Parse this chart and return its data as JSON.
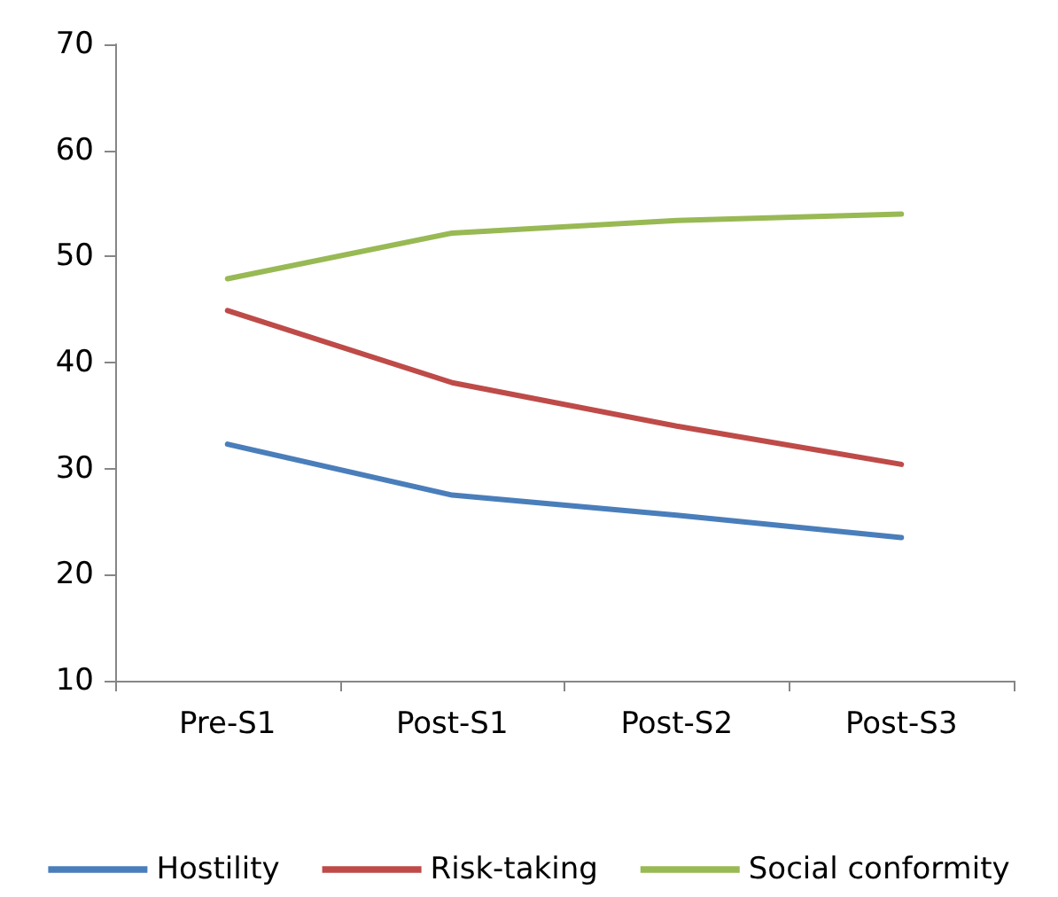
{
  "chart_data": {
    "type": "line",
    "categories": [
      "Pre-S1",
      "Post-S1",
      "Post-S2",
      "Post-S3"
    ],
    "series": [
      {
        "name": "Hostility",
        "color": "#4a7ebb",
        "values": [
          32.3,
          27.5,
          25.6,
          23.5
        ]
      },
      {
        "name": "Risk-taking",
        "color": "#be4b48",
        "values": [
          44.9,
          38.1,
          34,
          30.4
        ]
      },
      {
        "name": "Social conformity",
        "color": "#98b954",
        "values": [
          47.9,
          52.2,
          53.4,
          54
        ]
      }
    ],
    "ylim": [
      10,
      70
    ],
    "yticks": [
      10,
      20,
      30,
      40,
      50,
      60,
      70
    ],
    "grid": false,
    "legend": "bottom",
    "marker": "none",
    "line_style": "solid"
  }
}
